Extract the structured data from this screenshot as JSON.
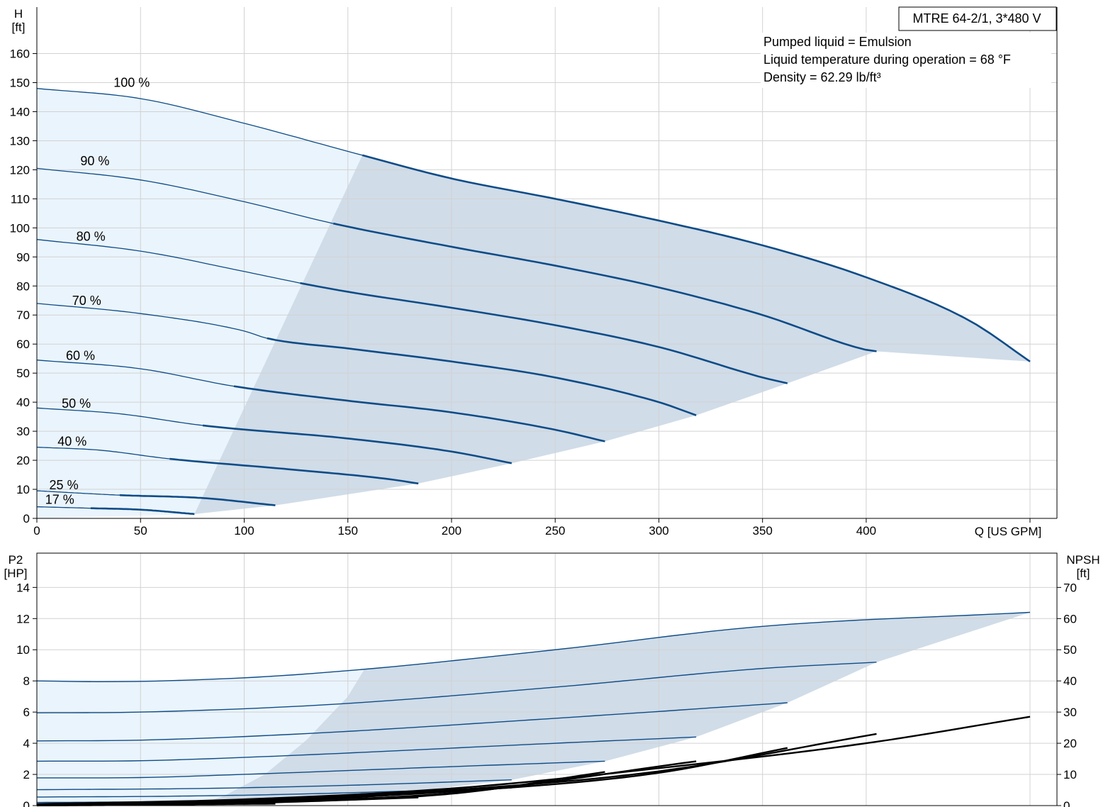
{
  "chart_data": [
    {
      "type": "line",
      "title": "",
      "model_label": "MTRE 64-2/1, 3*480 V",
      "info_lines": [
        "Pumped liquid = Emulsion",
        "Liquid temperature during operation = 68 °F",
        "Density = 62.29 lb/ft³"
      ],
      "ylabel": "H",
      "yunit": "[ft]",
      "xlabel": "Q [US GPM]",
      "xlim": [
        0,
        492
      ],
      "ylim": [
        0,
        176
      ],
      "xticks": [
        0,
        50,
        100,
        150,
        200,
        250,
        300,
        350,
        400
      ],
      "yticks": [
        0,
        10,
        20,
        30,
        40,
        50,
        60,
        70,
        80,
        90,
        100,
        110,
        120,
        130,
        140,
        150,
        160
      ],
      "grid": true,
      "colors": {
        "curve": "#0e4c87",
        "low_zone": "#eaf4fc",
        "op_zone": "#d0dce8",
        "grid": "#d2d2d2"
      },
      "series": [
        {
          "name": "100 %",
          "label_at": [
            37,
            150
          ],
          "split_x": 157,
          "x": [
            0,
            50,
            100,
            157,
            200,
            250,
            300,
            350,
            400,
            450,
            479
          ],
          "y": [
            148,
            144.5,
            136,
            125,
            117,
            110,
            102.5,
            94,
            83,
            68,
            54
          ]
        },
        {
          "name": "90 %",
          "label_at": [
            21,
            123
          ],
          "split_x": 143,
          "x": [
            0,
            50,
            100,
            143,
            200,
            250,
            300,
            350,
            400,
            405
          ],
          "y": [
            120.5,
            116.5,
            109,
            101.5,
            93.5,
            87,
            79.5,
            70,
            58,
            57.5
          ]
        },
        {
          "name": "80 %",
          "label_at": [
            19,
            97
          ],
          "split_x": 127,
          "x": [
            0,
            50,
            100,
            127,
            150,
            200,
            250,
            300,
            350,
            362
          ],
          "y": [
            96,
            92,
            85,
            81,
            78,
            72.5,
            66.5,
            59,
            48.5,
            46.5
          ]
        },
        {
          "name": "70 %",
          "label_at": [
            17,
            75
          ],
          "split_x": 111,
          "x": [
            0,
            50,
            100,
            111,
            150,
            200,
            250,
            300,
            318
          ],
          "y": [
            74,
            70.5,
            64.5,
            62,
            58.5,
            54,
            48.5,
            40,
            35.5
          ]
        },
        {
          "name": "60 %",
          "label_at": [
            14,
            56
          ],
          "split_x": 95,
          "x": [
            0,
            50,
            95,
            150,
            200,
            250,
            274
          ],
          "y": [
            54.5,
            51.5,
            45.5,
            40.5,
            36.5,
            30.5,
            26.5
          ]
        },
        {
          "name": "50 %",
          "label_at": [
            12,
            39.5
          ],
          "split_x": 80,
          "x": [
            0,
            40,
            80,
            150,
            200,
            229
          ],
          "y": [
            38,
            36,
            32,
            27.5,
            23,
            19
          ]
        },
        {
          "name": "40 %",
          "label_at": [
            10,
            26.5
          ],
          "split_x": 64,
          "x": [
            0,
            30,
            64,
            120,
            170,
            184
          ],
          "y": [
            24.5,
            23.5,
            20.5,
            17,
            13.5,
            12
          ]
        },
        {
          "name": "25 %",
          "label_at": [
            6,
            11.5
          ],
          "split_x": 40,
          "x": [
            0,
            40,
            80,
            115
          ],
          "y": [
            9.5,
            8,
            7,
            4.5
          ]
        },
        {
          "name": "17 %",
          "label_at": [
            4,
            6.5
          ],
          "split_x": 26,
          "x": [
            0,
            26,
            50,
            76
          ],
          "y": [
            4,
            3.5,
            3,
            1.5
          ]
        }
      ],
      "min_boundary": {
        "x": [
          76,
          90,
          110,
          130,
          150,
          158
        ],
        "y": [
          1.5,
          22,
          48,
          80,
          108,
          125
        ]
      }
    },
    {
      "type": "line",
      "title": "",
      "ylabel": "P2",
      "yunit": "[HP]",
      "y2label": "NPSH",
      "y2unit": "[ft]",
      "xlim": [
        0,
        492
      ],
      "ylim": [
        0,
        16.2
      ],
      "y2lim": [
        0,
        81
      ],
      "yticks": [
        0,
        2,
        4,
        6,
        8,
        10,
        12,
        14
      ],
      "y2ticks": [
        0,
        10,
        20,
        30,
        40,
        50,
        60,
        70
      ],
      "grid": true,
      "colors": {
        "power": "#0e4c87",
        "npsh": "#000000",
        "low_zone": "#eaf4fc",
        "op_zone": "#d0dce8"
      },
      "power_series": [
        {
          "name": "100 %",
          "x": [
            0,
            30,
            100,
            158,
            250,
            350,
            479
          ],
          "y": [
            8.0,
            7.95,
            8.2,
            8.75,
            10.0,
            11.5,
            12.4
          ]
        },
        {
          "name": "90 %",
          "x": [
            0,
            50,
            143,
            250,
            350,
            405
          ],
          "y": [
            5.95,
            6.0,
            6.5,
            7.6,
            8.8,
            9.2
          ]
        },
        {
          "name": "80 %",
          "x": [
            0,
            50,
            127,
            250,
            362
          ],
          "y": [
            4.15,
            4.2,
            4.6,
            5.6,
            6.6
          ]
        },
        {
          "name": "70 %",
          "x": [
            0,
            50,
            111,
            250,
            318
          ],
          "y": [
            2.85,
            2.88,
            3.15,
            4.0,
            4.4
          ]
        },
        {
          "name": "60 %",
          "x": [
            0,
            50,
            95,
            200,
            274
          ],
          "y": [
            1.78,
            1.8,
            1.98,
            2.5,
            2.85
          ]
        },
        {
          "name": "50 %",
          "x": [
            0,
            80,
            150,
            229
          ],
          "y": [
            1.02,
            1.1,
            1.3,
            1.65
          ]
        },
        {
          "name": "40 %",
          "x": [
            0,
            64,
            120,
            184
          ],
          "y": [
            0.55,
            0.6,
            0.72,
            0.95
          ]
        },
        {
          "name": "25 %",
          "x": [
            0,
            40,
            115
          ],
          "y": [
            0.2,
            0.23,
            0.32
          ]
        },
        {
          "name": "17 %",
          "x": [
            0,
            26,
            76
          ],
          "y": [
            0.08,
            0.09,
            0.12
          ]
        }
      ],
      "npsh_series": [
        {
          "name": "100 %",
          "x": [
            0,
            100,
            200,
            300,
            400,
            479
          ],
          "y": [
            0.5,
            2,
            5.5,
            12,
            20,
            28.5
          ]
        },
        {
          "name": "90 %",
          "x": [
            0,
            100,
            200,
            300,
            405
          ],
          "y": [
            0.4,
            1.8,
            5,
            11,
            23
          ]
        },
        {
          "name": "80 %",
          "x": [
            0,
            100,
            200,
            300,
            362
          ],
          "y": [
            0.3,
            1.5,
            4.5,
            10.5,
            18.5
          ]
        },
        {
          "name": "70 %",
          "x": [
            0,
            100,
            200,
            318
          ],
          "y": [
            0.2,
            1.2,
            4,
            14.2
          ]
        },
        {
          "name": "60 %",
          "x": [
            0,
            100,
            200,
            274
          ],
          "y": [
            0.15,
            1,
            3.8,
            10.8
          ]
        },
        {
          "name": "50 %",
          "x": [
            0,
            100,
            229
          ],
          "y": [
            0.1,
            0.9,
            5.8
          ]
        },
        {
          "name": "40 %",
          "x": [
            0,
            100,
            184
          ],
          "y": [
            0.1,
            0.8,
            2.6
          ]
        },
        {
          "name": "25 %",
          "x": [
            0,
            115
          ],
          "y": [
            0.05,
            0.6
          ]
        },
        {
          "name": "17 %",
          "x": [
            0,
            76
          ],
          "y": [
            0.03,
            0.3
          ]
        }
      ]
    }
  ]
}
